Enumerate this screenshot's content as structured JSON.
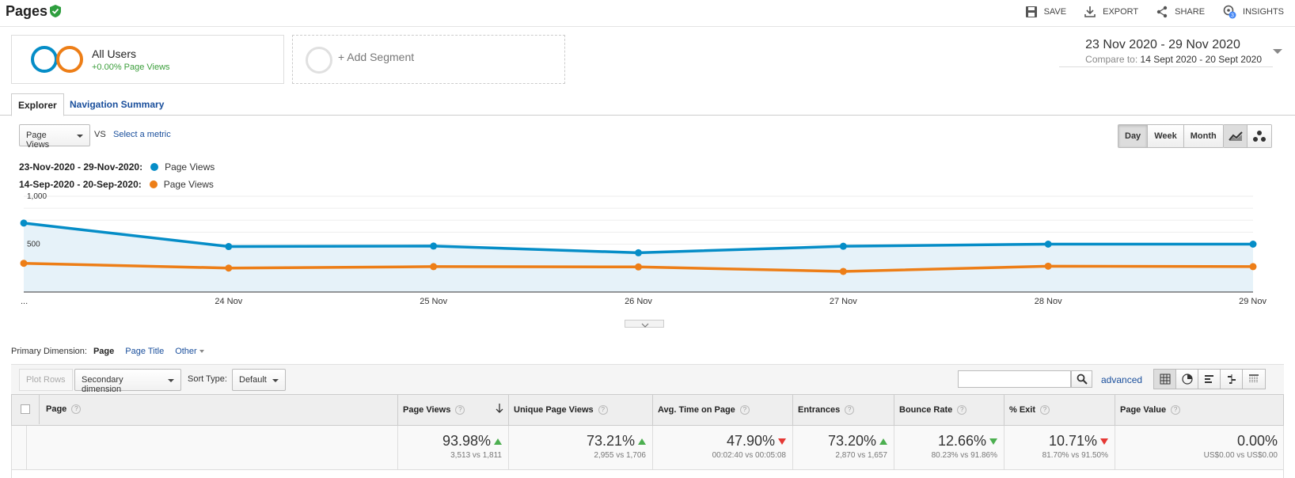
{
  "header": {
    "title": "Pages",
    "actions": [
      {
        "label": "SAVE",
        "icon": "save-icon"
      },
      {
        "label": "EXPORT",
        "icon": "export-icon"
      },
      {
        "label": "SHARE",
        "icon": "share-icon"
      },
      {
        "label": "INSIGHTS",
        "icon": "insights-icon",
        "badge": "3"
      }
    ]
  },
  "segments": {
    "active": {
      "name": "All Users",
      "sub": "+0.00% Page Views"
    },
    "add_label": "+ Add Segment"
  },
  "daterange": {
    "main": "23 Nov 2020 - 29 Nov 2020",
    "compare_label": "Compare to:",
    "compare_value": "14 Sept 2020 - 20 Sept 2020"
  },
  "tabs": [
    "Explorer",
    "Navigation Summary"
  ],
  "metric": {
    "selected": "Page Views",
    "vs": "VS",
    "select_label": "Select a metric"
  },
  "granularity": [
    "Day",
    "Week",
    "Month"
  ],
  "legend": [
    {
      "date": "23-Nov-2020 - 29-Nov-2020:",
      "metric": "Page Views",
      "color": "#058dc7"
    },
    {
      "date": "14-Sep-2020 - 20-Sep-2020:",
      "metric": "Page Views",
      "color": "#ed7e17"
    }
  ],
  "chart_data": {
    "type": "line",
    "x": [
      "...",
      "24 Nov",
      "25 Nov",
      "26 Nov",
      "27 Nov",
      "28 Nov",
      "29 Nov"
    ],
    "y_ticks": [
      "1,000",
      "500"
    ],
    "ylim": [
      0,
      1000
    ],
    "series": [
      {
        "name": "23-Nov-2020 - 29-Nov-2020: Page Views",
        "color": "#058dc7",
        "values": [
          720,
          475,
          480,
          410,
          478,
          500,
          500
        ]
      },
      {
        "name": "14-Sep-2020 - 20-Sep-2020: Page Views",
        "color": "#ed7e17",
        "values": [
          300,
          250,
          265,
          262,
          215,
          270,
          265
        ]
      }
    ]
  },
  "primary_dimension": {
    "label": "Primary Dimension:",
    "options": [
      "Page",
      "Page Title",
      "Other"
    ]
  },
  "controls": {
    "plot_rows": "Plot Rows",
    "secondary": "Secondary dimension",
    "sort_label": "Sort Type:",
    "sort_value": "Default",
    "advanced": "advanced"
  },
  "table": {
    "columns": [
      "Page",
      "Page Views",
      "Unique Page Views",
      "Avg. Time on Page",
      "Entrances",
      "Bounce Rate",
      "% Exit",
      "Page Value"
    ],
    "totals": [
      {
        "value": "93.98%",
        "sub": "3,513 vs 1,811",
        "trend": "up-green"
      },
      {
        "value": "73.21%",
        "sub": "2,955 vs 1,706",
        "trend": "up-green"
      },
      {
        "value": "47.90%",
        "sub": "00:02:40 vs 00:05:08",
        "trend": "down-red"
      },
      {
        "value": "73.20%",
        "sub": "2,870 vs 1,657",
        "trend": "up-green"
      },
      {
        "value": "12.66%",
        "sub": "80.23% vs 91.86%",
        "trend": "down-green"
      },
      {
        "value": "10.71%",
        "sub": "81.70% vs 91.50%",
        "trend": "down-red"
      },
      {
        "value": "0.00%",
        "sub": "US$0.00 vs US$0.00",
        "trend": "none"
      }
    ]
  }
}
